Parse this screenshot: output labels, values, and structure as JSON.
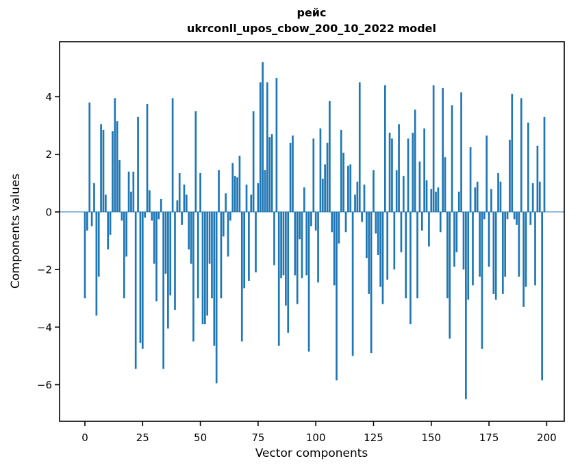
{
  "chart_data": {
    "type": "bar",
    "title_line1": "рейс",
    "title_line2": "ukrconll_upos_cbow_200_10_2022 model",
    "xlabel": "Vector components",
    "ylabel": "Components values",
    "bar_color": "#1f77b4",
    "axis_color": "#000000",
    "background_color": "#ffffff",
    "grid": false,
    "legend": null,
    "xlim": [
      -10.97,
      207.6
    ],
    "ylim": [
      -7.27,
      5.91
    ],
    "xticks": [
      0,
      25,
      50,
      75,
      100,
      125,
      150,
      175,
      200
    ],
    "xticklabels": [
      "0",
      "25",
      "50",
      "75",
      "100",
      "125",
      "150",
      "175",
      "200"
    ],
    "yticks": [
      -6,
      -4,
      -2,
      0,
      2,
      4
    ],
    "yticklabels": [
      "−6",
      "−4",
      "−2",
      "0",
      "2",
      "4"
    ],
    "n_components": 200,
    "bar_width_data_units": 0.8,
    "values": [
      -3.0,
      -0.65,
      3.8,
      -0.5,
      1.0,
      -3.6,
      -2.25,
      3.05,
      2.85,
      0.6,
      -1.3,
      -0.8,
      2.8,
      3.95,
      3.15,
      1.8,
      -0.3,
      -3.0,
      -1.55,
      1.4,
      0.7,
      1.4,
      -5.45,
      3.3,
      -4.55,
      -4.75,
      -0.2,
      3.75,
      0.75,
      -0.3,
      -1.8,
      -3.1,
      -0.25,
      0.45,
      -5.45,
      -2.15,
      -4.05,
      -2.9,
      3.95,
      -3.4,
      0.4,
      1.35,
      -0.45,
      0.95,
      0.6,
      -1.3,
      -1.8,
      -4.5,
      3.5,
      -3.0,
      1.35,
      -3.9,
      -3.9,
      -3.6,
      -1.8,
      -3.0,
      -4.65,
      -5.95,
      1.45,
      -3.0,
      -0.85,
      0.65,
      -1.55,
      -0.3,
      1.7,
      1.25,
      1.2,
      1.95,
      -4.5,
      -2.65,
      0.95,
      -2.4,
      0.6,
      3.5,
      -2.1,
      1.0,
      4.5,
      5.2,
      1.45,
      4.5,
      2.6,
      2.7,
      -1.85,
      4.65,
      -4.65,
      -2.3,
      -2.2,
      -3.25,
      -4.2,
      2.4,
      2.65,
      -2.2,
      -3.2,
      -0.95,
      -2.3,
      0.85,
      -2.2,
      -4.85,
      -0.5,
      2.55,
      -0.65,
      -2.45,
      2.9,
      1.15,
      1.65,
      2.4,
      3.85,
      -0.7,
      -2.55,
      -5.85,
      -1.1,
      2.85,
      2.05,
      -0.7,
      1.6,
      1.65,
      -5.0,
      0.6,
      1.05,
      4.5,
      -0.35,
      0.95,
      -1.6,
      -2.85,
      -4.9,
      1.45,
      -0.75,
      -1.5,
      -2.6,
      -3.2,
      4.4,
      -2.35,
      2.75,
      2.55,
      -2.0,
      1.45,
      3.05,
      -1.4,
      1.25,
      -3.0,
      2.55,
      -3.9,
      2.75,
      3.55,
      -3.0,
      1.75,
      -0.65,
      2.9,
      1.1,
      -1.2,
      0.8,
      4.4,
      0.7,
      0.85,
      -0.7,
      4.3,
      1.9,
      -3.0,
      -4.4,
      3.7,
      -1.9,
      -1.4,
      0.7,
      4.15,
      -2.0,
      -6.5,
      -3.05,
      2.25,
      -2.55,
      0.85,
      1.05,
      -2.25,
      -4.75,
      -0.25,
      2.65,
      -1.9,
      0.8,
      -2.85,
      -3.05,
      1.35,
      1.05,
      -2.85,
      -2.25,
      -0.25,
      2.5,
      4.1,
      -0.25,
      -0.45,
      -2.25,
      3.95,
      -3.3,
      -2.6,
      3.1,
      -0.45,
      1.0,
      -2.55,
      2.3,
      1.05,
      -5.85,
      3.3
    ]
  },
  "layout_note": "matplotlib-style static figure"
}
